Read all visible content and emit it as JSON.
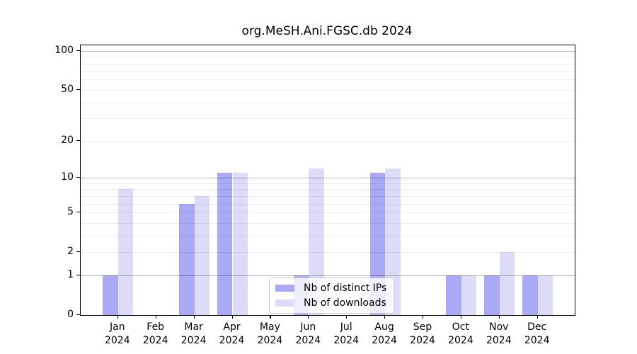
{
  "chart_data": {
    "type": "bar",
    "title": "org.MeSH.Ani.FGSC.db 2024",
    "categories": [
      "Jan",
      "Feb",
      "Mar",
      "Apr",
      "May",
      "Jun",
      "Jul",
      "Aug",
      "Sep",
      "Oct",
      "Nov",
      "Dec"
    ],
    "year_label": "2024",
    "series": [
      {
        "name": "Nb of distinct IPs",
        "color": "#a9a9f6",
        "values": [
          1,
          0,
          6,
          11,
          0,
          1,
          0,
          11,
          0,
          1,
          1,
          1
        ]
      },
      {
        "name": "Nb of downloads",
        "color": "#dcdcf8",
        "values": [
          8,
          0,
          7,
          11,
          0,
          12,
          0,
          12,
          0,
          1,
          2,
          1
        ]
      }
    ],
    "xlabel": "",
    "ylabel": "",
    "y_ticks": [
      0,
      1,
      2,
      5,
      10,
      20,
      50,
      100
    ],
    "major_gridlines": [
      1,
      10,
      100
    ],
    "minor_gridlines": [
      2,
      3,
      4,
      5,
      6,
      7,
      8,
      9,
      20,
      30,
      40,
      50,
      60,
      70,
      80,
      90
    ],
    "scale": "log10(value+1)",
    "ylim": [
      0,
      110
    ],
    "grid": true,
    "legend_position": "bottom-center",
    "colors": {
      "distinct_ips": "#a9a9f6",
      "downloads": "#dcdcf8",
      "axis": "#000000",
      "major_grid": "#b8b8b8",
      "minor_grid": "#ededed",
      "background": "#ffffff"
    }
  }
}
